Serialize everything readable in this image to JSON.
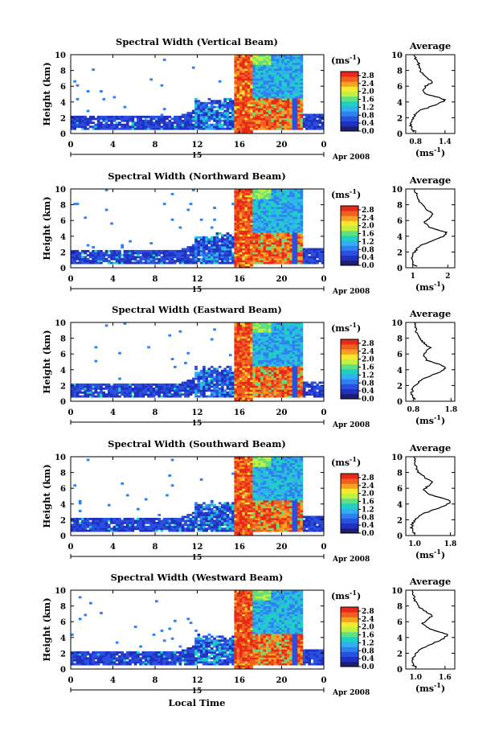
{
  "figure": {
    "xlabel": "Local Time",
    "date_label": "Apr 2008",
    "day_label": "15",
    "avg_title": "Average",
    "ylabel": "Height (km)",
    "cb_unit": "(ms",
    "cb_unit_exp": "-1",
    "avg_xlabel": "(ms",
    "avg_xlabel_exp": "-1"
  },
  "colors": {
    "scale": [
      "#1e1e6e",
      "#2030c0",
      "#2a50e0",
      "#2f80f0",
      "#30b0f0",
      "#20d0c0",
      "#60e080",
      "#c0f040",
      "#f8e830",
      "#f8a020",
      "#f06020",
      "#e82818"
    ],
    "background": "#ffffff",
    "profile": "#000000"
  },
  "chart_data": [
    {
      "type": "heatmap",
      "title": "Spectral Width (Vertical Beam)",
      "x_ticks": [
        "0",
        "4",
        "8",
        "12",
        "16",
        "20",
        "0"
      ],
      "xlim": [
        0,
        24
      ],
      "y_ticks": [
        "0",
        "2",
        "4",
        "6",
        "8",
        "10"
      ],
      "ylim": [
        0,
        10
      ],
      "colorbar_ticks": [
        "2.8",
        "2.4",
        "2.0",
        "1.6",
        "1.2",
        "0.8",
        "0.4",
        "0.0"
      ],
      "colorbar_range": [
        0.0,
        3.0
      ],
      "average_profile": {
        "x_ticks": [
          "0.8",
          "1.4"
        ],
        "xlim": [
          0.6,
          1.6
        ],
        "y_ticks": [
          "0",
          "2",
          "4",
          "6",
          "8",
          "10"
        ],
        "points": [
          [
            0.78,
            0.2
          ],
          [
            0.72,
            0.5
          ],
          [
            0.7,
            1
          ],
          [
            0.72,
            1.5
          ],
          [
            0.75,
            2
          ],
          [
            0.8,
            2.5
          ],
          [
            0.92,
            3
          ],
          [
            1.15,
            3.5
          ],
          [
            1.35,
            4
          ],
          [
            1.4,
            4.3
          ],
          [
            1.2,
            4.7
          ],
          [
            1.0,
            5
          ],
          [
            0.95,
            5.5
          ],
          [
            1.0,
            6
          ],
          [
            1.15,
            6.5
          ],
          [
            1.05,
            7
          ],
          [
            0.95,
            7.5
          ],
          [
            0.9,
            8
          ],
          [
            0.88,
            8.5
          ],
          [
            0.85,
            9
          ],
          [
            0.8,
            9.5
          ],
          [
            0.78,
            10
          ]
        ]
      }
    },
    {
      "type": "heatmap",
      "title": "Spectral Width (Northward Beam)",
      "x_ticks": [
        "0",
        "4",
        "8",
        "12",
        "16",
        "20",
        "0"
      ],
      "xlim": [
        0,
        24
      ],
      "y_ticks": [
        "0",
        "2",
        "4",
        "6",
        "8",
        "10"
      ],
      "ylim": [
        0,
        10
      ],
      "colorbar_ticks": [
        "2.8",
        "2.4",
        "2.0",
        "1.6",
        "1.2",
        "0.8",
        "0.4",
        "0.0"
      ],
      "colorbar_range": [
        0.0,
        3.0
      ],
      "average_profile": {
        "x_ticks": [
          "1",
          "2"
        ],
        "xlim": [
          0.8,
          2.2
        ],
        "y_ticks": [
          "0",
          "2",
          "4",
          "6",
          "8",
          "10"
        ],
        "points": [
          [
            1.1,
            0.2
          ],
          [
            1.0,
            0.5
          ],
          [
            0.98,
            1
          ],
          [
            1.0,
            1.5
          ],
          [
            1.05,
            2
          ],
          [
            1.15,
            2.5
          ],
          [
            1.3,
            3
          ],
          [
            1.6,
            3.5
          ],
          [
            1.9,
            4
          ],
          [
            1.95,
            4.5
          ],
          [
            1.7,
            4.8
          ],
          [
            1.45,
            5.2
          ],
          [
            1.35,
            5.8
          ],
          [
            1.45,
            6.2
          ],
          [
            1.6,
            6.8
          ],
          [
            1.45,
            7.2
          ],
          [
            1.3,
            7.8
          ],
          [
            1.2,
            8.3
          ],
          [
            1.15,
            8.8
          ],
          [
            1.1,
            9.4
          ],
          [
            1.05,
            10
          ]
        ]
      }
    },
    {
      "type": "heatmap",
      "title": "Spectral Width (Eastward Beam)",
      "x_ticks": [
        "0",
        "4",
        "8",
        "12",
        "16",
        "20",
        "0"
      ],
      "xlim": [
        0,
        24
      ],
      "y_ticks": [
        "0",
        "2",
        "4",
        "6",
        "8",
        "10"
      ],
      "ylim": [
        0,
        10
      ],
      "colorbar_ticks": [
        "2.8",
        "2.4",
        "2.0",
        "1.6",
        "1.2",
        "0.8",
        "0.4",
        "0.0"
      ],
      "colorbar_range": [
        0.0,
        3.0
      ],
      "average_profile": {
        "x_ticks": [
          "0.8",
          "1.8"
        ],
        "xlim": [
          0.6,
          1.9
        ],
        "y_ticks": [
          "0",
          "2",
          "4",
          "6",
          "8",
          "10"
        ],
        "points": [
          [
            0.85,
            0.2
          ],
          [
            0.78,
            0.5
          ],
          [
            0.75,
            1
          ],
          [
            0.78,
            1.5
          ],
          [
            0.85,
            2
          ],
          [
            0.95,
            2.5
          ],
          [
            1.15,
            3
          ],
          [
            1.4,
            3.5
          ],
          [
            1.6,
            4
          ],
          [
            1.65,
            4.4
          ],
          [
            1.4,
            4.8
          ],
          [
            1.15,
            5.2
          ],
          [
            1.05,
            5.8
          ],
          [
            1.15,
            6.3
          ],
          [
            1.25,
            6.8
          ],
          [
            1.1,
            7.3
          ],
          [
            1.0,
            7.8
          ],
          [
            0.92,
            8.3
          ],
          [
            0.88,
            8.8
          ],
          [
            0.85,
            9.4
          ],
          [
            0.82,
            10
          ]
        ]
      }
    },
    {
      "type": "heatmap",
      "title": "Spectral Width (Southward Beam)",
      "x_ticks": [
        "0",
        "4",
        "8",
        "12",
        "16",
        "20",
        "0"
      ],
      "xlim": [
        0,
        24
      ],
      "y_ticks": [
        "0",
        "2",
        "4",
        "6",
        "8",
        "10"
      ],
      "ylim": [
        0,
        10
      ],
      "colorbar_ticks": [
        "2.8",
        "2.4",
        "2.0",
        "1.6",
        "1.2",
        "0.8",
        "0.4",
        "0.0"
      ],
      "colorbar_range": [
        0.0,
        3.0
      ],
      "average_profile": {
        "x_ticks": [
          "1.0",
          "1.8"
        ],
        "xlim": [
          0.8,
          1.9
        ],
        "y_ticks": [
          "0",
          "2",
          "4",
          "6",
          "8",
          "10"
        ],
        "points": [
          [
            1.0,
            0.2
          ],
          [
            0.95,
            0.5
          ],
          [
            0.93,
            1
          ],
          [
            0.95,
            1.5
          ],
          [
            1.0,
            2
          ],
          [
            1.1,
            2.5
          ],
          [
            1.3,
            3
          ],
          [
            1.55,
            3.5
          ],
          [
            1.75,
            4
          ],
          [
            1.8,
            4.4
          ],
          [
            1.6,
            4.8
          ],
          [
            1.35,
            5.2
          ],
          [
            1.2,
            5.8
          ],
          [
            1.3,
            6.3
          ],
          [
            1.4,
            6.8
          ],
          [
            1.25,
            7.3
          ],
          [
            1.12,
            7.8
          ],
          [
            1.05,
            8.3
          ],
          [
            1.02,
            8.8
          ],
          [
            1.0,
            9.4
          ],
          [
            0.98,
            10
          ]
        ]
      }
    },
    {
      "type": "heatmap",
      "title": "Spectral Width (Westward Beam)",
      "x_ticks": [
        "0",
        "4",
        "8",
        "12",
        "16",
        "20",
        "0"
      ],
      "xlim": [
        0,
        24
      ],
      "y_ticks": [
        "0",
        "2",
        "4",
        "6",
        "8",
        "10"
      ],
      "ylim": [
        0,
        10
      ],
      "colorbar_ticks": [
        "2.8",
        "2.4",
        "2.0",
        "1.6",
        "1.2",
        "0.8",
        "0.4",
        "0.0"
      ],
      "colorbar_range": [
        0.0,
        3.0
      ],
      "average_profile": {
        "x_ticks": [
          "1.0",
          "1.6"
        ],
        "xlim": [
          0.8,
          1.8
        ],
        "y_ticks": [
          "0",
          "2",
          "4",
          "6",
          "8",
          "10"
        ],
        "points": [
          [
            1.0,
            0.2
          ],
          [
            0.95,
            0.5
          ],
          [
            0.92,
            1
          ],
          [
            0.95,
            1.5
          ],
          [
            1.0,
            2
          ],
          [
            1.08,
            2.5
          ],
          [
            1.25,
            3
          ],
          [
            1.45,
            3.5
          ],
          [
            1.6,
            4
          ],
          [
            1.65,
            4.4
          ],
          [
            1.45,
            4.8
          ],
          [
            1.25,
            5.2
          ],
          [
            1.15,
            5.8
          ],
          [
            1.25,
            6.3
          ],
          [
            1.35,
            6.8
          ],
          [
            1.2,
            7.3
          ],
          [
            1.08,
            7.8
          ],
          [
            1.02,
            8.3
          ],
          [
            0.98,
            8.8
          ],
          [
            0.96,
            9.4
          ],
          [
            0.94,
            10
          ]
        ]
      }
    }
  ]
}
